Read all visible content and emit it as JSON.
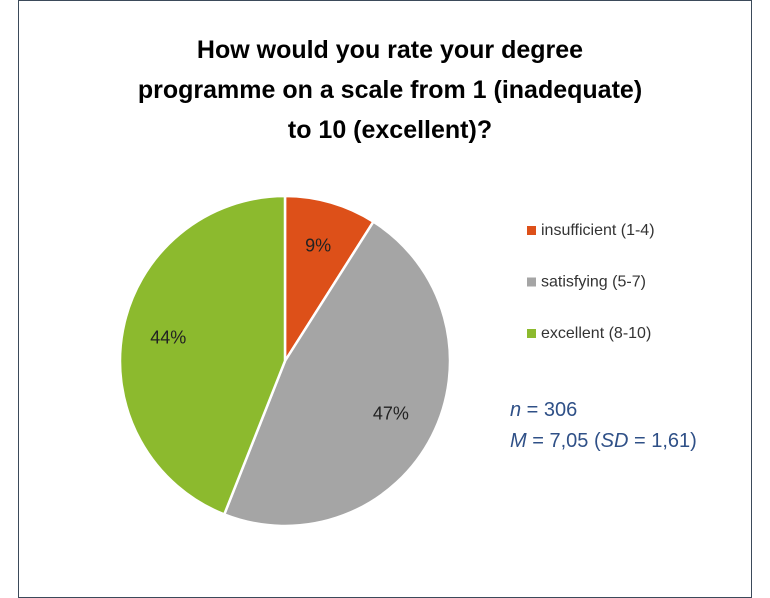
{
  "chart_data": {
    "type": "pie",
    "title": "How would you rate your degree programme on a scale from 1 (inadequate) to 10 (excellent)?",
    "categories": [
      "insufficient (1-4)",
      "satisfying (5-7)",
      "excellent (8-10)"
    ],
    "values": [
      9,
      47,
      44
    ],
    "value_labels": [
      "9%",
      "47%",
      "44%"
    ],
    "colors": [
      "#dd5019",
      "#a5a5a5",
      "#8cba2e"
    ],
    "legend": "right",
    "annotations": [
      [
        {
          "text": "n",
          "italic": true
        },
        {
          "text": " = 306",
          "italic": false
        }
      ],
      [
        {
          "text": "M",
          "italic": true
        },
        {
          "text": " = 7,05 (",
          "italic": false
        },
        {
          "text": "SD",
          "italic": true
        },
        {
          "text": " = 1,61)",
          "italic": false
        }
      ]
    ]
  }
}
